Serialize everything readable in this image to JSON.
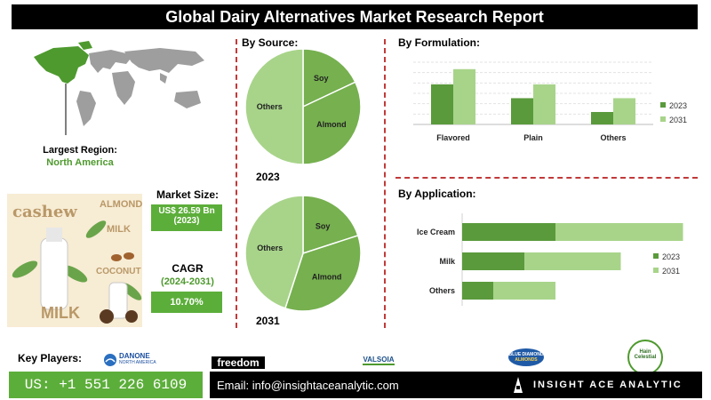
{
  "title": "Global Dairy Alternatives Market Research Report",
  "region": {
    "label": "Largest Region:",
    "value": "North America"
  },
  "image_labels": {
    "cashew": "cashew",
    "almond": "ALMOND",
    "almond_milk": "MILK",
    "coconut": "COCONUT",
    "milk": "MILK"
  },
  "market_size": {
    "label": "Market Size:",
    "value": "US$ 26.59 Bn",
    "year": "(2023)"
  },
  "cagr": {
    "label": "CAGR",
    "period": "(2024-2031)",
    "value": "10.70%"
  },
  "key_players": {
    "label": "Key Players:",
    "logos": [
      "DANONE",
      "NORTH AMERICA",
      "freedom",
      "VALSOIA",
      "BLUE DIAMOND",
      "ALMONDS",
      "Hain",
      "Celestial"
    ]
  },
  "footer": {
    "phone": "US: +1 551 226 6109",
    "email": "Email: info@insightaceanalytic.com",
    "brand": "INSIGHT ACE ANALYTIC"
  },
  "colors": {
    "dark_green": "#5a9a3c",
    "mid_green": "#76b04f",
    "light_green": "#a8d48a",
    "accent_red": "#c23a3a"
  },
  "chart_data": [
    {
      "type": "pie",
      "title": "By Source:",
      "caption": "2023",
      "labels": [
        "Soy",
        "Almond",
        "Others"
      ],
      "values": [
        18,
        32,
        50
      ]
    },
    {
      "type": "pie",
      "caption": "2031",
      "labels": [
        "Soy",
        "Almond",
        "Others"
      ],
      "values": [
        20,
        35,
        45
      ]
    },
    {
      "type": "bar",
      "title": "By Formulation:",
      "categories": [
        "Flavored",
        "Plain",
        "Others"
      ],
      "series": [
        {
          "name": "2023",
          "values": [
            29,
            19,
            9
          ]
        },
        {
          "name": "2031",
          "values": [
            40,
            29,
            19
          ]
        }
      ],
      "ylim": [
        0,
        45
      ],
      "legend": "right"
    },
    {
      "type": "bar",
      "orientation": "horizontal-stacked",
      "title": "By Application:",
      "categories": [
        "Ice Cream",
        "Milk",
        "Others"
      ],
      "series": [
        {
          "name": "2023",
          "values": [
            60,
            40,
            20
          ]
        },
        {
          "name": "2031",
          "values": [
            82,
            62,
            40
          ]
        }
      ],
      "legend": "right"
    }
  ]
}
